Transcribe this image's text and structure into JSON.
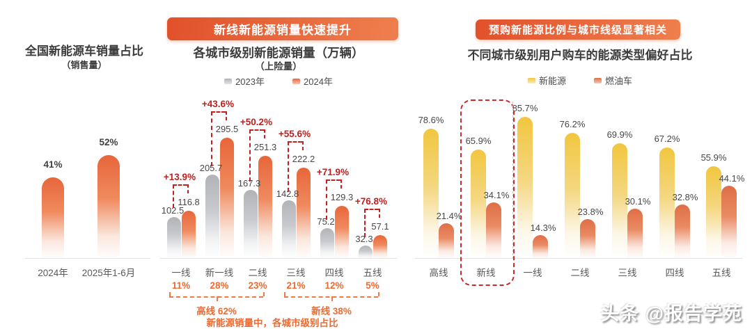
{
  "watermark": "头条 @报告学苑",
  "colors": {
    "badge_gradient_start": "#E1512B",
    "badge_gradient_end": "#EF7F4E",
    "growth_red": "#C22020",
    "accent_orange": "#ED6A30",
    "bar_orange": "#E7663A",
    "bar_gray": "#B1B3B9",
    "bar_yellow": "#F1C63F",
    "bar_fuel_orange": "#DF6E47"
  },
  "chart_data": [
    {
      "id": "national-ev-share",
      "type": "bar",
      "title": "全国新能源车销量占比",
      "subtitle": "（销售量）",
      "categories": [
        "2024年",
        "2025年1-6月"
      ],
      "values": [
        41,
        52
      ],
      "value_labels": [
        "41%",
        "52%"
      ],
      "ylim": [
        0,
        60
      ],
      "grid": false,
      "bar_color": "#E7663A"
    },
    {
      "id": "ev-sales-by-city-tier",
      "type": "bar",
      "badge": "新线新能源销量快速提升",
      "title": "各城市级别新能源销量（万辆）",
      "subtitle": "（上险量）",
      "legend_position": "top",
      "legend": [
        {
          "label": "2023年",
          "color": "#B1B3B9"
        },
        {
          "label": "2024年",
          "color": "#E7663A"
        }
      ],
      "categories": [
        "一线",
        "新一线",
        "二线",
        "三线",
        "四线",
        "五线"
      ],
      "series": [
        {
          "name": "2023年",
          "color": "#B1B3B9",
          "values": [
            102.5,
            205.7,
            167.3,
            142.8,
            75.2,
            32.3
          ]
        },
        {
          "name": "2024年",
          "color": "#E7663A",
          "values": [
            116.8,
            295.5,
            251.3,
            222.2,
            129.3,
            57.1
          ]
        }
      ],
      "growth_labels": [
        "+13.9%",
        "+43.6%",
        "+50.2%",
        "+55.6%",
        "+71.9%",
        "+76.8%"
      ],
      "share_labels": [
        "11%",
        "28%",
        "23%",
        "21%",
        "12%",
        "5%"
      ],
      "braces": [
        {
          "label": "高线 62%",
          "from": 0,
          "to": 2
        },
        {
          "label": "新线 38%",
          "from": 3,
          "to": 5
        }
      ],
      "caption": "新能源销量中，各城市级别占比",
      "ylim": [
        0,
        320
      ],
      "grid": false
    },
    {
      "id": "energy-type-preference-by-city-tier",
      "type": "bar",
      "badge": "预购新能源比例与城市线级显著相关",
      "title": "不同城市级别用户购车的能源类型偏好占比",
      "legend_position": "top",
      "legend": [
        {
          "label": "新能源",
          "color": "#F1C63F"
        },
        {
          "label": "燃油车",
          "color": "#DF6E47"
        }
      ],
      "categories": [
        "高线",
        "新线",
        "一线",
        "二线",
        "三线",
        "四线",
        "五线"
      ],
      "series": [
        {
          "name": "新能源",
          "color": "#F1C63F",
          "values": [
            78.6,
            65.9,
            85.7,
            76.2,
            69.9,
            67.2,
            55.9
          ]
        },
        {
          "name": "燃油车",
          "color": "#DF6E47",
          "values": [
            21.4,
            34.1,
            14.3,
            23.8,
            30.1,
            32.8,
            44.1
          ]
        }
      ],
      "highlight_category": "新线",
      "ylim": [
        0,
        100
      ],
      "grid": false
    }
  ]
}
